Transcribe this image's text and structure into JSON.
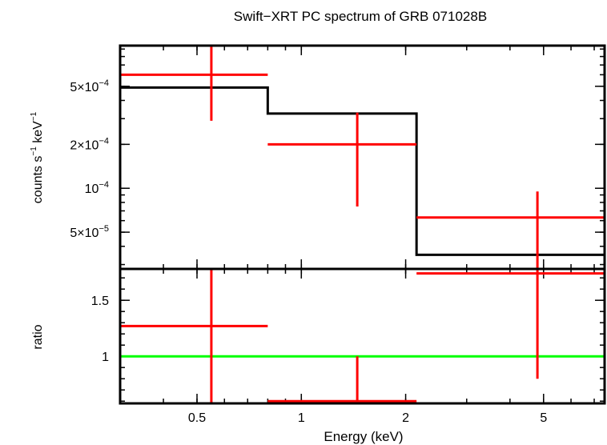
{
  "chart_data": {
    "type": "scatter",
    "title": "Swift−XRT PC spectrum of GRB 071028B",
    "xlabel": "Energy (keV)",
    "x_scale": "log",
    "xlim": [
      0.3,
      7.5
    ],
    "x_ticks": [
      {
        "value": 0.5,
        "label": "0.5"
      },
      {
        "value": 1,
        "label": "1"
      },
      {
        "value": 2,
        "label": "2"
      },
      {
        "value": 5,
        "label": "5"
      }
    ],
    "colors": {
      "data": "#ff0000",
      "model": "#000000",
      "unity": "#00ff00",
      "axes": "#000000"
    },
    "panels": [
      {
        "name": "spectrum",
        "ylabel_main": "counts s",
        "ylabel_sup1": "−1",
        "ylabel_mid": " keV",
        "ylabel_sup2": "−1",
        "y_scale": "log",
        "ylim": [
          2.8e-05,
          0.00095
        ],
        "y_ticks": [
          {
            "value": 0.0005,
            "mant": "5×10",
            "exp": "−4"
          },
          {
            "value": 0.0002,
            "mant": "2×10",
            "exp": "−4"
          },
          {
            "value": 0.0001,
            "mant": "10",
            "exp": "−4"
          },
          {
            "value": 5e-05,
            "mant": "5×10",
            "exp": "−5"
          }
        ],
        "data_points": [
          {
            "x": 0.55,
            "x_low": 0.3,
            "x_high": 0.8,
            "y": 0.0006,
            "y_low": 0.00029,
            "y_high": 0.00095
          },
          {
            "x": 1.45,
            "x_low": 0.8,
            "x_high": 2.15,
            "y": 0.0002,
            "y_low": 7.5e-05,
            "y_high": 0.00033
          },
          {
            "x": 4.8,
            "x_low": 2.15,
            "x_high": 7.5,
            "y": 6.3e-05,
            "y_low": 2.8e-05,
            "y_high": 9.5e-05
          }
        ],
        "model_steps": [
          {
            "x_low": 0.3,
            "x_high": 0.8,
            "y": 0.00049
          },
          {
            "x_low": 0.8,
            "x_high": 2.15,
            "y": 0.000325
          },
          {
            "x_low": 2.15,
            "x_high": 7.5,
            "y": 3.5e-05
          }
        ]
      },
      {
        "name": "ratio",
        "ylabel": "ratio",
        "y_scale": "linear",
        "ylim": [
          0.58,
          1.78
        ],
        "y_ticks": [
          {
            "value": 1.5,
            "label": "1.5"
          },
          {
            "value": 1,
            "label": "1"
          }
        ],
        "unity_line": 1,
        "data_points": [
          {
            "x": 0.55,
            "x_low": 0.3,
            "x_high": 0.8,
            "y": 1.27,
            "y_low": 0.58,
            "y_high": 1.78
          },
          {
            "x": 1.45,
            "x_low": 0.8,
            "x_high": 2.15,
            "y": 0.6,
            "y_low": 0.58,
            "y_high": 1.0
          },
          {
            "x": 4.8,
            "x_low": 2.15,
            "x_high": 7.5,
            "y": 1.74,
            "y_low": 0.8,
            "y_high": 1.78
          }
        ]
      }
    ]
  }
}
